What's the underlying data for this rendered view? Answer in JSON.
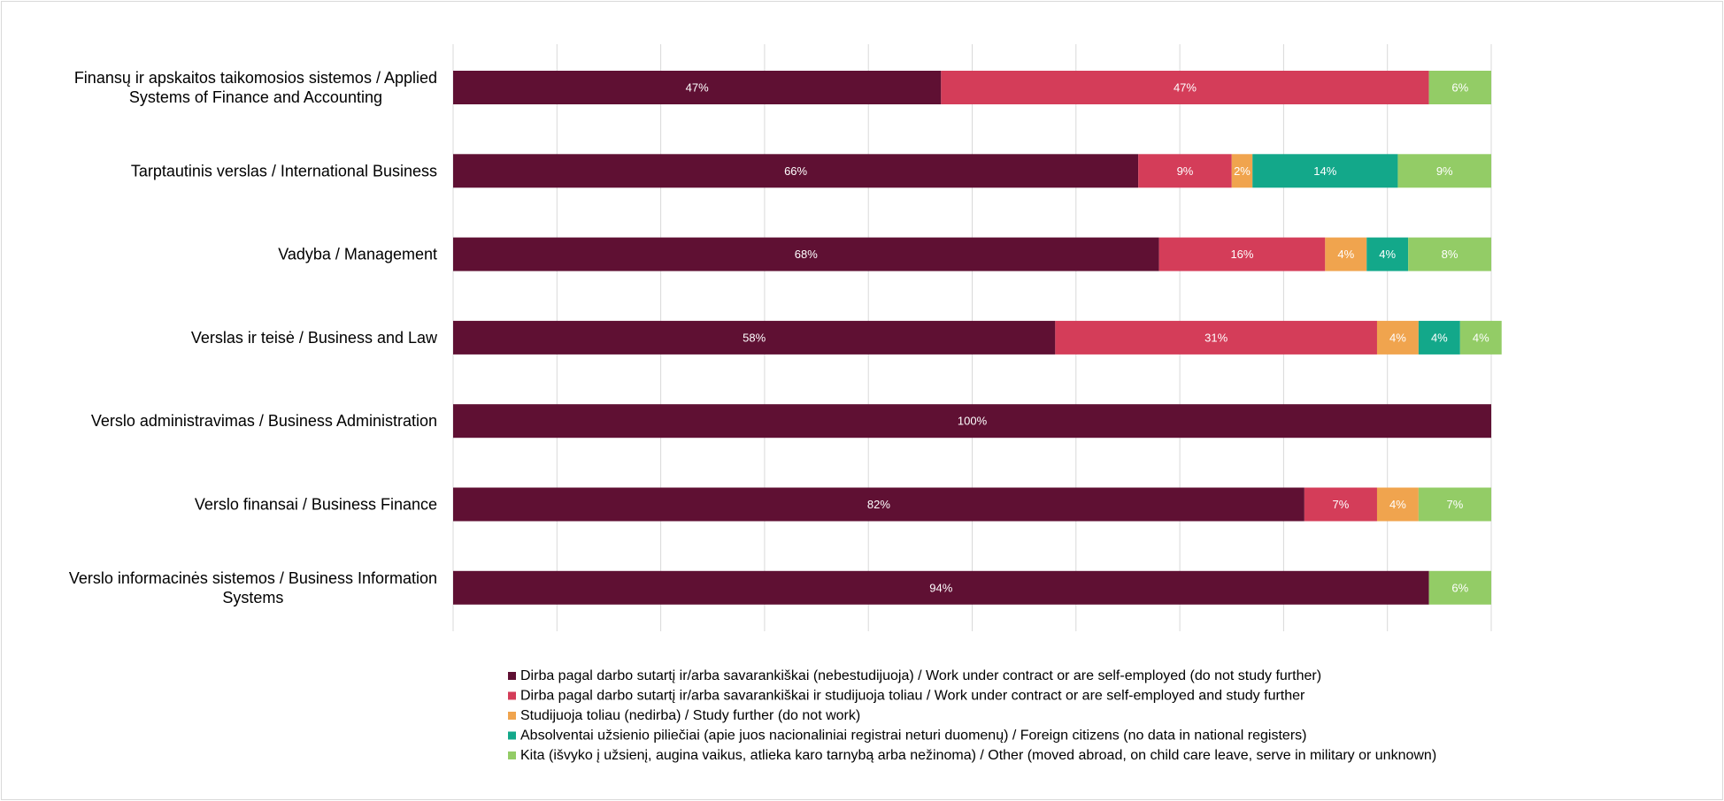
{
  "chart_data": {
    "type": "bar",
    "orientation": "horizontal",
    "stacked": true,
    "percent_stacked": true,
    "xlim": [
      0,
      100
    ],
    "grid": true,
    "legend_position": "bottom",
    "categories": [
      "Finansų ir apskaitos taikomosios sistemos / Applied Systems of Finance and Accounting",
      "Tarptautinis verslas / International Business",
      "Vadyba / Management",
      "Verslas ir teisė / Business and Law",
      "Verslo administravimas / Business Administration",
      "Verslo finansai / Business Finance",
      "Verslo informacinės sistemos / Business Information Systems"
    ],
    "category_lines": [
      [
        "Finansų ir apskaitos taikomosios sistemos / Applied",
        "Systems of Finance and Accounting"
      ],
      [
        "Tarptautinis verslas / International Business"
      ],
      [
        "Vadyba / Management"
      ],
      [
        "Verslas ir teisė / Business and Law"
      ],
      [
        "Verslo administravimas / Business Administration"
      ],
      [
        "Verslo finansai / Business Finance"
      ],
      [
        "Verslo informacinės sistemos / Business Information",
        "Systems"
      ]
    ],
    "series": [
      {
        "name": "Dirba pagal darbo sutartį ir/arba savarankiškai (nebestudijuoja) / Work under contract or are self-employed (do not study further)",
        "color": "#5f1033",
        "values": [
          47,
          66,
          68,
          58,
          100,
          82,
          94
        ]
      },
      {
        "name": "Dirba pagal darbo sutartį ir/arba savarankiškai  ir studijuoja toliau / Work under contract or are self-employed and study further",
        "color": "#d43d59",
        "values": [
          47,
          9,
          16,
          31,
          0,
          7,
          0
        ]
      },
      {
        "name": "Studijuoja toliau (nedirba) / Study further (do not work)",
        "color": "#f0a44e",
        "values": [
          0,
          2,
          4,
          4,
          0,
          4,
          0
        ]
      },
      {
        "name": "Absolventai užsienio piliečiai (apie juos nacionaliniai registrai neturi duomenų) / Foreign citizens (no data in national registers)",
        "color": "#13a88a",
        "values": [
          0,
          14,
          4,
          4,
          0,
          0,
          0
        ]
      },
      {
        "name": "Kita (išvyko į užsienį, augina vaikus, atlieka karo tarnybą arba nežinoma) / Other (moved abroad, on child care leave, serve in military or unknown)",
        "color": "#93cc66",
        "values": [
          6,
          9,
          8,
          4,
          0,
          7,
          6
        ]
      }
    ]
  }
}
